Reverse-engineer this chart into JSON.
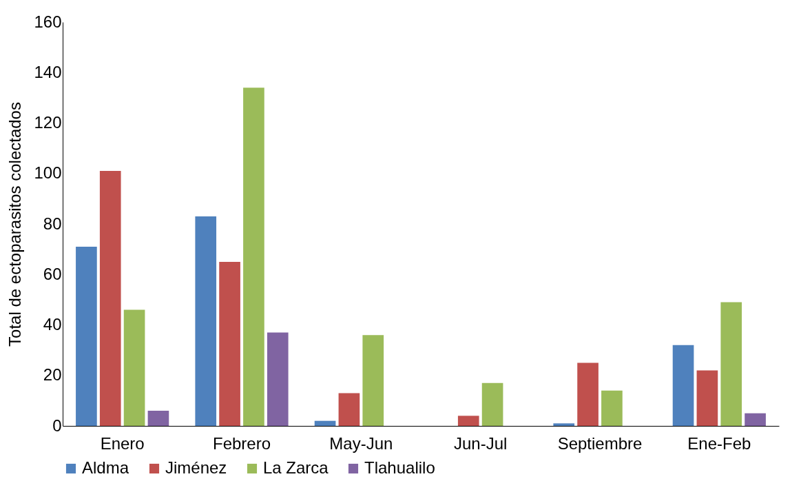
{
  "chart_data": {
    "type": "bar",
    "ylabel": "Total de ectoparasitos colectados",
    "categories": [
      "Enero",
      "Febrero",
      "May-Jun",
      "Jun-Jul",
      "Septiembre",
      "Ene-Feb"
    ],
    "series": [
      {
        "name": "Aldma",
        "color": "#4f81bd",
        "values": [
          71,
          83,
          2,
          0,
          1,
          32
        ]
      },
      {
        "name": "Jiménez",
        "color": "#c0504d",
        "values": [
          101,
          65,
          13,
          4,
          25,
          22
        ]
      },
      {
        "name": "La Zarca",
        "color": "#9bbb59",
        "values": [
          46,
          134,
          36,
          17,
          14,
          49
        ]
      },
      {
        "name": "Tlahualilo",
        "color": "#8064a2",
        "values": [
          6,
          37,
          0,
          0,
          0,
          5
        ]
      }
    ],
    "ylim": [
      0,
      160
    ],
    "yticks": [
      0,
      20,
      40,
      60,
      80,
      100,
      120,
      140,
      160
    ],
    "grid": false,
    "legend": "bottom"
  }
}
